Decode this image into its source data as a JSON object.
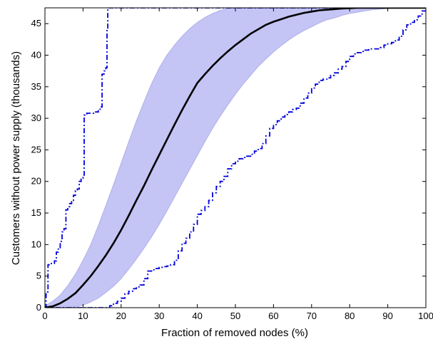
{
  "chart_data": {
    "type": "line",
    "title": "",
    "xlabel": "Fraction of removed nodes (%)",
    "ylabel": "Customers without power supply (thousands)",
    "xlim": [
      0,
      100
    ],
    "ylim": [
      0,
      47.5
    ],
    "x_ticks": [
      0,
      10,
      20,
      30,
      40,
      50,
      60,
      70,
      80,
      90,
      100
    ],
    "y_ticks": [
      0,
      5,
      10,
      15,
      20,
      25,
      30,
      35,
      40,
      45
    ],
    "grid": false,
    "legend": "none",
    "colors": {
      "mean": "#000000",
      "band": "#c4c4f5",
      "bounds": "#0000dd"
    },
    "series": [
      {
        "role": "mean",
        "style": "solid",
        "x": [
          0,
          2,
          4,
          6,
          8,
          10,
          12,
          14,
          16,
          18,
          20,
          22,
          24,
          26,
          28,
          30,
          32,
          34,
          36,
          38,
          40,
          42,
          44,
          46,
          48,
          50,
          52,
          54,
          56,
          58,
          60,
          62,
          64,
          66,
          68,
          70,
          72,
          74,
          76,
          78,
          80,
          82,
          84,
          86,
          88,
          90,
          92,
          94,
          96,
          98,
          100
        ],
        "y": [
          0,
          0.2,
          0.7,
          1.4,
          2.3,
          3.6,
          5.0,
          6.6,
          8.3,
          10.2,
          12.3,
          14.6,
          17.0,
          19.3,
          21.8,
          24.2,
          26.6,
          29.0,
          31.3,
          33.5,
          35.6,
          37.0,
          38.3,
          39.5,
          40.6,
          41.6,
          42.5,
          43.4,
          44.1,
          44.8,
          45.3,
          45.7,
          46.1,
          46.4,
          46.7,
          46.9,
          47.1,
          47.2,
          47.3,
          47.4,
          47.45,
          47.5,
          47.5,
          47.5,
          47.5,
          47.5,
          47.5,
          47.5,
          47.5,
          47.5,
          47.5
        ]
      },
      {
        "role": "band",
        "style": "fill",
        "x": [
          0,
          2,
          4,
          6,
          8,
          10,
          12,
          14,
          16,
          18,
          20,
          22,
          24,
          26,
          28,
          30,
          32,
          34,
          36,
          38,
          40,
          42,
          44,
          46,
          48,
          50,
          52,
          54,
          56,
          58,
          60,
          62,
          64,
          66,
          68,
          70,
          72,
          74,
          76,
          78,
          80,
          82,
          84,
          86,
          88,
          90,
          92,
          94,
          96,
          98,
          100
        ],
        "upper": [
          0.3,
          1.0,
          2.0,
          3.5,
          5.3,
          7.5,
          10.0,
          13.0,
          16.2,
          19.5,
          22.9,
          26.3,
          29.6,
          32.6,
          35.5,
          38.0,
          40.0,
          41.6,
          43.0,
          44.2,
          45.2,
          46.0,
          46.6,
          47.1,
          47.4,
          47.5,
          47.5,
          47.5,
          47.5,
          47.5,
          47.5,
          47.5,
          47.5,
          47.5,
          47.5,
          47.5,
          47.5,
          47.5,
          47.5,
          47.5,
          47.5,
          47.5,
          47.5,
          47.5,
          47.5,
          47.5,
          47.5,
          47.5,
          47.5,
          47.5,
          47.5
        ],
        "lower": [
          0,
          0,
          0,
          0,
          0.1,
          0.4,
          0.9,
          1.5,
          2.4,
          3.4,
          4.6,
          6.1,
          7.7,
          9.4,
          11.2,
          13.2,
          15.3,
          17.5,
          19.7,
          21.9,
          24.1,
          26.3,
          28.4,
          30.3,
          32.1,
          33.8,
          35.4,
          36.8,
          38.2,
          39.4,
          40.5,
          41.5,
          42.4,
          43.2,
          43.9,
          44.5,
          45.1,
          45.6,
          45.9,
          46.3,
          46.6,
          46.8,
          47.0,
          47.2,
          47.3,
          47.4,
          47.45,
          47.5,
          47.5,
          47.5,
          47.5
        ]
      },
      {
        "role": "upper-bound",
        "style": "dash-dot",
        "x": [
          0,
          0.3,
          0.8,
          1.5,
          2.5,
          3.0,
          3.5,
          4.0,
          4.5,
          5.0,
          5.5,
          6.0,
          6.5,
          7.0,
          7.5,
          8.0,
          8.5,
          9.0,
          9.5,
          10.0,
          10.3,
          11.0,
          12.0,
          13.0,
          14.0,
          14.5,
          15.0,
          15.5,
          16.0,
          16.3,
          16.5,
          17.0,
          100
        ],
        "y": [
          0,
          2.5,
          6.8,
          7.0,
          7.4,
          8.8,
          9.5,
          10.5,
          12.0,
          12.5,
          15.5,
          16.0,
          16.5,
          17.0,
          17.8,
          18.5,
          18.8,
          20.0,
          20.5,
          21.0,
          30.5,
          30.8,
          30.8,
          31.0,
          31.2,
          31.8,
          37.0,
          37.5,
          38.0,
          44.0,
          47.5,
          47.5,
          47.5
        ]
      },
      {
        "role": "lower-bound",
        "style": "dash-dot",
        "x": [
          0,
          8,
          10,
          12,
          14,
          16,
          17,
          18,
          19,
          20,
          21,
          22,
          23,
          24,
          25,
          26,
          27,
          28,
          29,
          30,
          31,
          32,
          33,
          34,
          35,
          36,
          37,
          38,
          39,
          40,
          41,
          42,
          43,
          44,
          45,
          46,
          47,
          48,
          49,
          50,
          51,
          52,
          53,
          54,
          55,
          56,
          57,
          58,
          59,
          60,
          61,
          62,
          63,
          64,
          65,
          66,
          67,
          68,
          69,
          70,
          71,
          72,
          73,
          74,
          75,
          76,
          77,
          78,
          79,
          80,
          81,
          82,
          83,
          84,
          85,
          86,
          87,
          88,
          89,
          90,
          91,
          92,
          93,
          94,
          95,
          96,
          97,
          98,
          99,
          100
        ],
        "y": [
          0,
          0,
          0,
          0,
          0,
          0,
          0.3,
          0.7,
          1.0,
          1.5,
          2.2,
          2.6,
          3.0,
          3.3,
          3.6,
          4.6,
          5.8,
          6.0,
          6.2,
          6.4,
          6.5,
          6.6,
          6.8,
          7.5,
          9.0,
          10.2,
          11.0,
          12.0,
          13.2,
          14.8,
          15.4,
          16.0,
          17.0,
          18.2,
          19.2,
          20.0,
          20.8,
          22.0,
          22.8,
          23.2,
          23.6,
          23.8,
          24.0,
          24.3,
          24.8,
          25.2,
          26.0,
          27.2,
          28.4,
          29.0,
          29.6,
          30.2,
          30.6,
          31.0,
          31.4,
          31.6,
          32.4,
          33.2,
          34.0,
          34.8,
          35.4,
          36.0,
          36.2,
          36.4,
          36.8,
          37.2,
          37.8,
          38.2,
          39.0,
          39.8,
          40.2,
          40.4,
          40.6,
          40.8,
          41.0,
          41.0,
          41.0,
          41.2,
          41.6,
          41.8,
          42.0,
          42.4,
          43.0,
          44.0,
          44.8,
          45.2,
          45.6,
          46.2,
          47.0,
          47.5
        ]
      }
    ]
  }
}
